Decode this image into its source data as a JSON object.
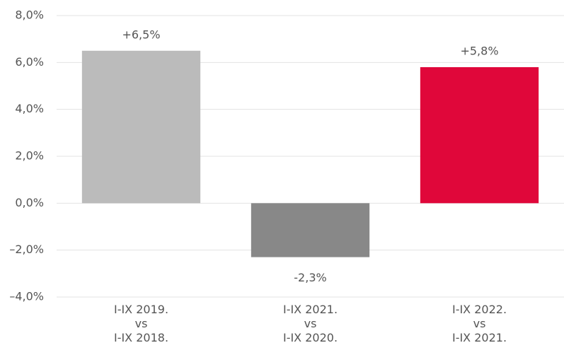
{
  "chart_data": {
    "type": "bar",
    "categories": [
      "I-IX 2019.\nvs\nI-IX 2018.",
      "I-IX 2021.\nvs\nI-IX 2020.",
      "I-IX 2022.\nvs\nI-IX 2021."
    ],
    "values": [
      6.5,
      -2.3,
      5.8
    ],
    "value_labels": [
      "+6,5%",
      "-2,3%",
      "+5,8%"
    ],
    "colors": [
      "#bbbbbb",
      "#888888",
      "#e0073a"
    ],
    "ylim": [
      -4,
      8
    ],
    "yticks": [
      {
        "value": -4,
        "label": "–4,0%"
      },
      {
        "value": -2,
        "label": "–2,0%"
      },
      {
        "value": 0,
        "label": "0,0%"
      },
      {
        "value": 2,
        "label": "2,0%"
      },
      {
        "value": 4,
        "label": "4,0%"
      },
      {
        "value": 6,
        "label": "6,0%"
      },
      {
        "value": 8,
        "label": "8,0%"
      }
    ],
    "grid": true
  }
}
